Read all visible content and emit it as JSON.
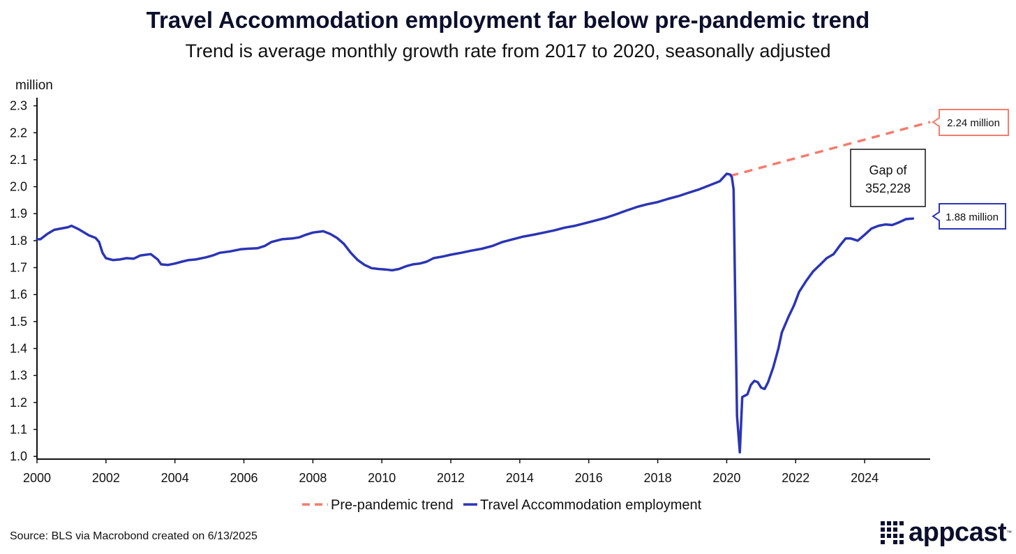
{
  "chart_data": {
    "type": "line",
    "title": "Travel Accommodation employment far below pre-pandemic trend",
    "subtitle": "Trend is average monthly growth rate from 2017 to 2020, seasonally adjusted",
    "ylabel": "million",
    "ylim": [
      0.99,
      2.33
    ],
    "xlim": [
      2000,
      2025.9
    ],
    "yticks": [
      1.0,
      1.1,
      1.2,
      1.3,
      1.4,
      1.5,
      1.6,
      1.7,
      1.8,
      1.9,
      2.0,
      2.1,
      2.2,
      2.3
    ],
    "ytick_labels": [
      "1.0",
      "1.1",
      "1.2",
      "1.3",
      "1.4",
      "1.5",
      "1.6",
      "1.7",
      "1.8",
      "1.9",
      "2.0",
      "2.1",
      "2.2",
      "2.3"
    ],
    "xticks": [
      2000,
      2002,
      2004,
      2006,
      2008,
      2010,
      2012,
      2014,
      2016,
      2018,
      2020,
      2022,
      2024
    ],
    "xtick_labels": [
      "2000",
      "2002",
      "2004",
      "2006",
      "2008",
      "2010",
      "2012",
      "2014",
      "2016",
      "2018",
      "2020",
      "2022",
      "2024"
    ],
    "series": [
      {
        "name": "Pre-pandemic trend",
        "color": "#f47c6c",
        "style": "dashed",
        "points": [
          [
            2020.1,
            2.04
          ],
          [
            2025.9,
            2.24
          ]
        ]
      },
      {
        "name": "Travel Accommodation employment",
        "color": "#2b35b5",
        "style": "solid",
        "points": [
          [
            2000.0,
            1.805
          ],
          [
            2000.1,
            1.805
          ],
          [
            2000.3,
            1.825
          ],
          [
            2000.5,
            1.84
          ],
          [
            2000.7,
            1.845
          ],
          [
            2000.9,
            1.85
          ],
          [
            2001.0,
            1.855
          ],
          [
            2001.2,
            1.843
          ],
          [
            2001.5,
            1.82
          ],
          [
            2001.7,
            1.81
          ],
          [
            2001.8,
            1.795
          ],
          [
            2001.9,
            1.755
          ],
          [
            2002.0,
            1.735
          ],
          [
            2002.2,
            1.728
          ],
          [
            2002.4,
            1.73
          ],
          [
            2002.6,
            1.735
          ],
          [
            2002.8,
            1.733
          ],
          [
            2003.0,
            1.745
          ],
          [
            2003.3,
            1.75
          ],
          [
            2003.5,
            1.73
          ],
          [
            2003.6,
            1.712
          ],
          [
            2003.8,
            1.71
          ],
          [
            2004.0,
            1.715
          ],
          [
            2004.2,
            1.722
          ],
          [
            2004.4,
            1.728
          ],
          [
            2004.6,
            1.73
          ],
          [
            2004.9,
            1.738
          ],
          [
            2005.1,
            1.745
          ],
          [
            2005.3,
            1.755
          ],
          [
            2005.6,
            1.76
          ],
          [
            2005.9,
            1.768
          ],
          [
            2006.1,
            1.77
          ],
          [
            2006.4,
            1.772
          ],
          [
            2006.6,
            1.78
          ],
          [
            2006.8,
            1.795
          ],
          [
            2007.1,
            1.805
          ],
          [
            2007.4,
            1.808
          ],
          [
            2007.6,
            1.812
          ],
          [
            2007.8,
            1.822
          ],
          [
            2008.0,
            1.83
          ],
          [
            2008.3,
            1.835
          ],
          [
            2008.5,
            1.825
          ],
          [
            2008.7,
            1.81
          ],
          [
            2008.9,
            1.788
          ],
          [
            2009.1,
            1.755
          ],
          [
            2009.3,
            1.728
          ],
          [
            2009.5,
            1.71
          ],
          [
            2009.7,
            1.698
          ],
          [
            2009.9,
            1.695
          ],
          [
            2010.1,
            1.693
          ],
          [
            2010.3,
            1.69
          ],
          [
            2010.5,
            1.695
          ],
          [
            2010.7,
            1.705
          ],
          [
            2010.9,
            1.712
          ],
          [
            2011.1,
            1.715
          ],
          [
            2011.3,
            1.722
          ],
          [
            2011.5,
            1.735
          ],
          [
            2011.8,
            1.742
          ],
          [
            2012.0,
            1.748
          ],
          [
            2012.3,
            1.755
          ],
          [
            2012.6,
            1.763
          ],
          [
            2012.9,
            1.77
          ],
          [
            2013.2,
            1.78
          ],
          [
            2013.5,
            1.795
          ],
          [
            2013.8,
            1.805
          ],
          [
            2014.1,
            1.815
          ],
          [
            2014.4,
            1.822
          ],
          [
            2014.7,
            1.83
          ],
          [
            2015.0,
            1.838
          ],
          [
            2015.3,
            1.848
          ],
          [
            2015.6,
            1.855
          ],
          [
            2015.9,
            1.865
          ],
          [
            2016.2,
            1.875
          ],
          [
            2016.5,
            1.885
          ],
          [
            2016.8,
            1.898
          ],
          [
            2017.1,
            1.912
          ],
          [
            2017.4,
            1.925
          ],
          [
            2017.7,
            1.935
          ],
          [
            2018.0,
            1.943
          ],
          [
            2018.3,
            1.955
          ],
          [
            2018.6,
            1.965
          ],
          [
            2018.9,
            1.978
          ],
          [
            2019.2,
            1.99
          ],
          [
            2019.5,
            2.005
          ],
          [
            2019.8,
            2.02
          ],
          [
            2020.0,
            2.048
          ],
          [
            2020.1,
            2.045
          ],
          [
            2020.15,
            2.035
          ],
          [
            2020.2,
            1.99
          ],
          [
            2020.25,
            1.55
          ],
          [
            2020.3,
            1.15
          ],
          [
            2020.38,
            1.015
          ],
          [
            2020.45,
            1.22
          ],
          [
            2020.6,
            1.23
          ],
          [
            2020.7,
            1.265
          ],
          [
            2020.8,
            1.28
          ],
          [
            2020.9,
            1.275
          ],
          [
            2021.0,
            1.255
          ],
          [
            2021.1,
            1.25
          ],
          [
            2021.2,
            1.275
          ],
          [
            2021.35,
            1.33
          ],
          [
            2021.5,
            1.4
          ],
          [
            2021.6,
            1.46
          ],
          [
            2021.8,
            1.52
          ],
          [
            2021.95,
            1.56
          ],
          [
            2022.1,
            1.61
          ],
          [
            2022.3,
            1.65
          ],
          [
            2022.5,
            1.685
          ],
          [
            2022.7,
            1.71
          ],
          [
            2022.9,
            1.735
          ],
          [
            2023.1,
            1.75
          ],
          [
            2023.3,
            1.785
          ],
          [
            2023.45,
            1.808
          ],
          [
            2023.6,
            1.808
          ],
          [
            2023.8,
            1.8
          ],
          [
            2024.0,
            1.822
          ],
          [
            2024.2,
            1.845
          ],
          [
            2024.4,
            1.855
          ],
          [
            2024.6,
            1.86
          ],
          [
            2024.8,
            1.858
          ],
          [
            2025.0,
            1.868
          ],
          [
            2025.2,
            1.88
          ],
          [
            2025.4,
            1.882
          ]
        ]
      }
    ],
    "annotations": {
      "gap_box": {
        "line1": "Gap of",
        "line2": "352,228"
      },
      "trend_end_label": "2.24 million",
      "actual_end_label": "1.88 million"
    },
    "legend": {
      "position": "bottom-center",
      "items": [
        "Pre-pandemic trend",
        "Travel Accommodation employment"
      ]
    },
    "source": "Source: BLS via Macrobond created on 6/13/2025"
  },
  "brand": {
    "logo_text": "appcast",
    "tm": "™"
  }
}
